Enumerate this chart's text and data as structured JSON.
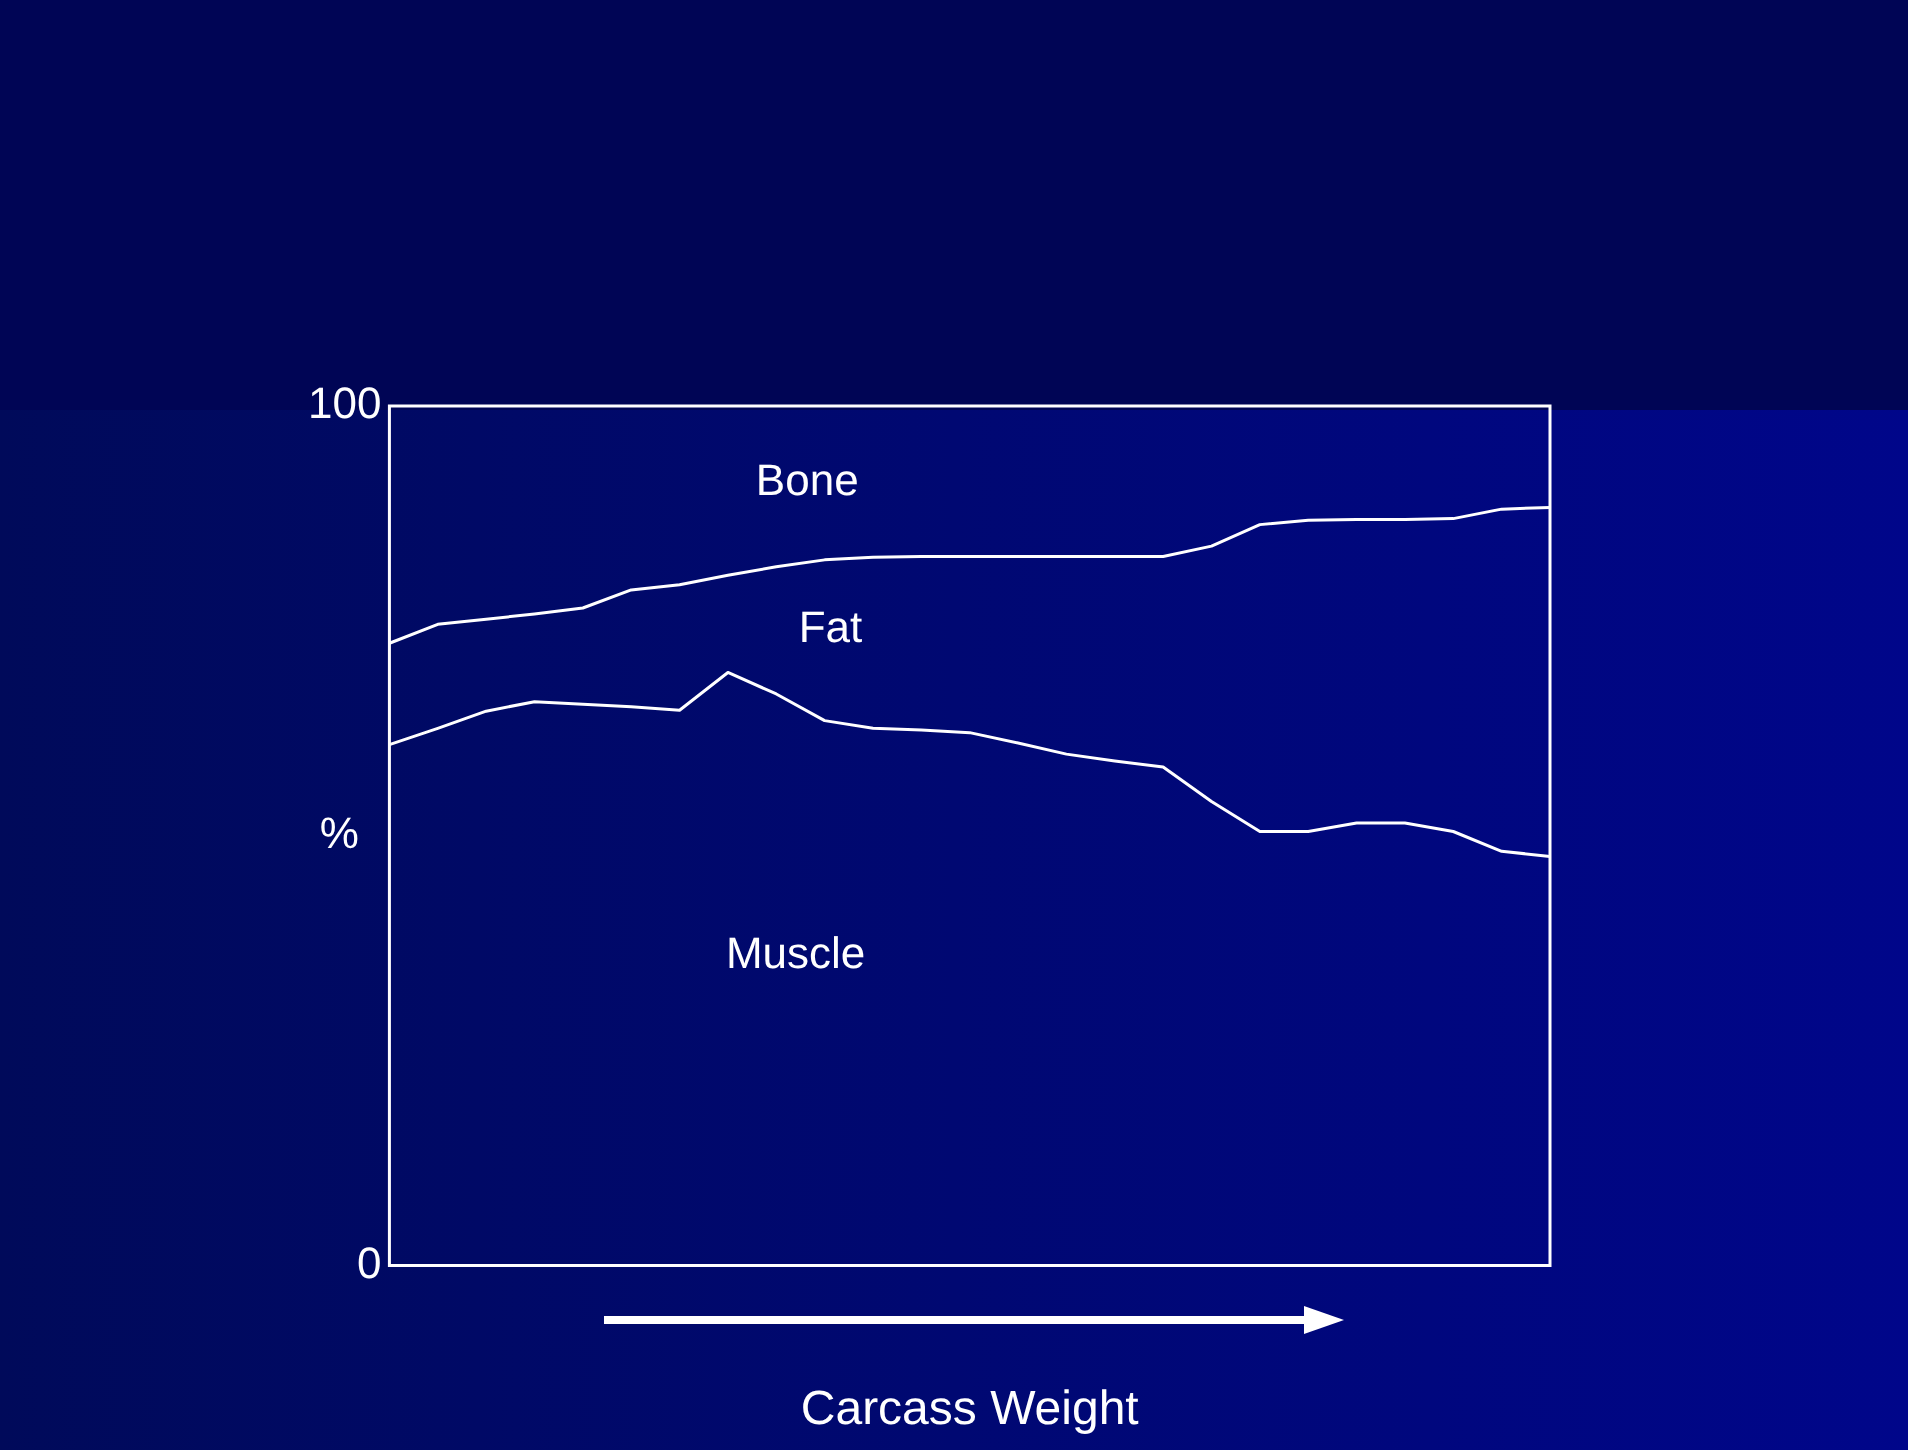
{
  "chart_data": {
    "type": "line",
    "xlabel": "Carcass Weight",
    "ylabel": "%",
    "categories": [
      null,
      null,
      null,
      null,
      null,
      null,
      null,
      null,
      null,
      null,
      null,
      null,
      null,
      null,
      null,
      null,
      null,
      null,
      null,
      null,
      null,
      null,
      null,
      null,
      null
    ],
    "series": [
      {
        "color": "#ffffff",
        "values": [
          72.4,
          74.6,
          75.2,
          75.8,
          76.5,
          78.6,
          79.2,
          80.3,
          81.3,
          82.1,
          82.4,
          82.5,
          82.5,
          82.5,
          82.5,
          82.5,
          82.5,
          83.7,
          86.2,
          86.7,
          86.8,
          86.8,
          86.9,
          88,
          88.2
        ]
      },
      {
        "color": "#ffffff",
        "values": [
          60.6,
          62.5,
          64.5,
          65.6,
          65.3,
          65,
          64.6,
          69,
          66.5,
          63.4,
          62.5,
          62.3,
          62,
          60.8,
          59.5,
          58.7,
          58,
          54,
          50.5,
          50.5,
          51.5,
          51.5,
          50.5,
          48.2,
          47.6
        ]
      }
    ],
    "ylim": [
      0,
      100
    ],
    "yticks": [
      0,
      100
    ],
    "grid": false,
    "legend": false,
    "marker": "none",
    "line_style": "solid",
    "annotations": [
      "Bone",
      "Fat",
      "Muscle"
    ]
  }
}
